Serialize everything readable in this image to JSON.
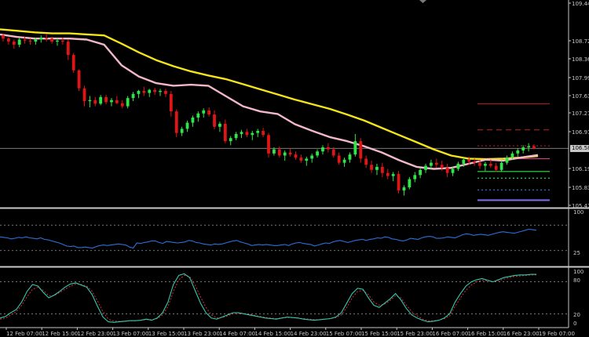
{
  "colors": {
    "background": "#000000",
    "axis": "#c8c8c8",
    "grid_dash": "#9a9a9a",
    "bull_candle": "#2ee64a",
    "bear_candle": "#e01515",
    "ma_slow": "#f5e41a",
    "ma_fast": "#f3b8c8",
    "rsi": "#2f6ed8",
    "stoch_main": "#35c8b0",
    "stoch_signal": "#d23030",
    "level_red": "#b01c2a",
    "level_magenta": "#d63a8a",
    "level_green": "#2ee64a",
    "level_blue": "#3a7ae0",
    "level_violet": "#7a68e8"
  },
  "current_price": "106.58",
  "chart_data": [
    {
      "type": "candlestick",
      "panel": "price",
      "ylim": [
        105.47,
        109.44
      ],
      "y_tick_labels": [
        "109.44",
        "108.72",
        "108.36",
        "107.99",
        "107.63",
        "107.27",
        "106.91",
        "106.58",
        "106.19",
        "105.83",
        "105.47"
      ],
      "x_tick_labels": [
        "12 Feb 07:00",
        "12 Feb 15:00",
        "12 Feb 23:00",
        "13 Feb 07:00",
        "13 Feb 15:00",
        "13 Feb 23:00",
        "14 Feb 07:00",
        "14 Feb 15:00",
        "14 Feb 23:00",
        "15 Feb 07:00",
        "15 Feb 15:00",
        "15 Feb 23:00",
        "16 Feb 07:00",
        "16 Feb 15:00",
        "16 Feb 23:00",
        "19 Feb 07:00"
      ],
      "moving_averages": [
        {
          "color_key": "ma_slow",
          "values": [
            108.9,
            108.87,
            108.84,
            108.82,
            108.82,
            108.8,
            108.78,
            108.62,
            108.45,
            108.3,
            108.18,
            108.08,
            108.0,
            107.93,
            107.83,
            107.73,
            107.63,
            107.53,
            107.44,
            107.35,
            107.24,
            107.12,
            106.98,
            106.84,
            106.7,
            106.56,
            106.44,
            106.38,
            106.37,
            106.38,
            106.4,
            106.43
          ]
        },
        {
          "color_key": "ma_fast",
          "values": [
            108.8,
            108.75,
            108.72,
            108.72,
            108.72,
            108.7,
            108.6,
            108.2,
            107.98,
            107.85,
            107.8,
            107.82,
            107.8,
            107.6,
            107.4,
            107.3,
            107.25,
            107.05,
            106.92,
            106.8,
            106.72,
            106.62,
            106.5,
            106.35,
            106.22,
            106.18,
            106.2,
            106.28,
            106.36,
            106.34,
            106.4,
            106.45
          ]
        }
      ],
      "levels": [
        {
          "price": 107.45,
          "style": "solid",
          "color_key": "level_red"
        },
        {
          "price": 106.94,
          "style": "dashed",
          "color_key": "level_red"
        },
        {
          "price": 106.63,
          "style": "dotted",
          "color_key": "level_red"
        },
        {
          "price": 106.38,
          "style": "solid",
          "color_key": "level_magenta"
        },
        {
          "price": 106.13,
          "style": "solid",
          "color_key": "level_green"
        },
        {
          "price": 106.0,
          "style": "dotted",
          "color_key": "level_green"
        },
        {
          "price": 105.77,
          "style": "dotted",
          "color_key": "level_blue"
        },
        {
          "price": 105.57,
          "style": "solid",
          "color_key": "level_violet"
        }
      ],
      "candles": [
        [
          108.78,
          108.82,
          108.66,
          108.72
        ],
        [
          108.72,
          108.74,
          108.6,
          108.66
        ],
        [
          108.66,
          108.7,
          108.52,
          108.6
        ],
        [
          108.6,
          108.74,
          108.55,
          108.7
        ],
        [
          108.7,
          108.76,
          108.62,
          108.68
        ],
        [
          108.68,
          108.72,
          108.6,
          108.66
        ],
        [
          108.66,
          108.74,
          108.6,
          108.7
        ],
        [
          108.7,
          108.78,
          108.64,
          108.74
        ],
        [
          108.74,
          108.8,
          108.66,
          108.72
        ],
        [
          108.72,
          108.76,
          108.62,
          108.66
        ],
        [
          108.66,
          108.72,
          108.58,
          108.68
        ],
        [
          108.68,
          108.74,
          108.6,
          108.66
        ],
        [
          108.66,
          108.7,
          108.3,
          108.4
        ],
        [
          108.4,
          108.44,
          108.05,
          108.1
        ],
        [
          108.1,
          108.12,
          107.7,
          107.75
        ],
        [
          107.75,
          107.8,
          107.4,
          107.5
        ],
        [
          107.5,
          107.6,
          107.38,
          107.52
        ],
        [
          107.52,
          107.58,
          107.4,
          107.45
        ],
        [
          107.45,
          107.62,
          107.42,
          107.58
        ],
        [
          107.58,
          107.62,
          107.44,
          107.48
        ],
        [
          107.48,
          107.56,
          107.4,
          107.52
        ],
        [
          107.52,
          107.6,
          107.44,
          107.46
        ],
        [
          107.46,
          107.52,
          107.36,
          107.4
        ],
        [
          107.4,
          107.6,
          107.36,
          107.56
        ],
        [
          107.56,
          107.68,
          107.5,
          107.64
        ],
        [
          107.64,
          107.72,
          107.56,
          107.7
        ],
        [
          107.7,
          107.78,
          107.6,
          107.66
        ],
        [
          107.66,
          107.74,
          107.58,
          107.72
        ],
        [
          107.72,
          107.76,
          107.62,
          107.68
        ],
        [
          107.68,
          107.74,
          107.6,
          107.7
        ],
        [
          107.7,
          107.74,
          107.58,
          107.64
        ],
        [
          107.64,
          107.7,
          107.2,
          107.3
        ],
        [
          107.3,
          107.34,
          106.8,
          106.88
        ],
        [
          106.88,
          107.0,
          106.82,
          106.96
        ],
        [
          106.96,
          107.12,
          106.9,
          107.08
        ],
        [
          107.08,
          107.22,
          107.0,
          107.18
        ],
        [
          107.18,
          107.3,
          107.1,
          107.26
        ],
        [
          107.26,
          107.36,
          107.18,
          107.32
        ],
        [
          107.32,
          107.38,
          107.2,
          107.24
        ],
        [
          107.24,
          107.32,
          106.95,
          107.0
        ],
        [
          107.0,
          107.1,
          106.9,
          107.06
        ],
        [
          107.06,
          107.14,
          106.68,
          106.72
        ],
        [
          106.72,
          106.82,
          106.64,
          106.78
        ],
        [
          106.78,
          106.9,
          106.74,
          106.86
        ],
        [
          106.86,
          106.94,
          106.78,
          106.9
        ],
        [
          106.9,
          106.96,
          106.8,
          106.84
        ],
        [
          106.84,
          106.92,
          106.74,
          106.88
        ],
        [
          106.88,
          106.96,
          106.8,
          106.92
        ],
        [
          106.92,
          106.98,
          106.8,
          106.84
        ],
        [
          106.84,
          106.88,
          106.4,
          106.48
        ],
        [
          106.48,
          106.6,
          106.44,
          106.56
        ],
        [
          106.56,
          106.62,
          106.4,
          106.44
        ],
        [
          106.44,
          106.54,
          106.34,
          106.5
        ],
        [
          106.5,
          106.58,
          106.42,
          106.46
        ],
        [
          106.46,
          106.52,
          106.36,
          106.4
        ],
        [
          106.4,
          106.46,
          106.3,
          106.34
        ],
        [
          106.34,
          106.42,
          106.24,
          106.38
        ],
        [
          106.38,
          106.48,
          106.3,
          106.44
        ],
        [
          106.44,
          106.56,
          106.4,
          106.52
        ],
        [
          106.52,
          106.64,
          106.46,
          106.6
        ],
        [
          106.6,
          106.68,
          106.5,
          106.56
        ],
        [
          106.56,
          106.6,
          106.4,
          106.44
        ],
        [
          106.44,
          106.5,
          106.26,
          106.3
        ],
        [
          106.3,
          106.4,
          106.22,
          106.36
        ],
        [
          106.36,
          106.5,
          106.3,
          106.46
        ],
        [
          106.46,
          106.86,
          106.42,
          106.72
        ],
        [
          106.72,
          106.78,
          106.3,
          106.38
        ],
        [
          106.38,
          106.44,
          106.2,
          106.26
        ],
        [
          106.26,
          106.34,
          106.1,
          106.16
        ],
        [
          106.16,
          106.28,
          106.06,
          106.22
        ],
        [
          106.22,
          106.3,
          106.02,
          106.1
        ],
        [
          106.1,
          106.18,
          105.98,
          106.04
        ],
        [
          106.04,
          106.12,
          105.94,
          106.08
        ],
        [
          106.08,
          106.14,
          105.7,
          105.76
        ],
        [
          105.76,
          105.86,
          105.66,
          105.82
        ],
        [
          105.82,
          106.02,
          105.78,
          105.98
        ],
        [
          105.98,
          106.12,
          105.92,
          106.06
        ],
        [
          106.06,
          106.2,
          106.0,
          106.16
        ],
        [
          106.16,
          106.28,
          106.1,
          106.24
        ],
        [
          106.24,
          106.36,
          106.18,
          106.3
        ],
        [
          106.3,
          106.38,
          106.2,
          106.26
        ],
        [
          106.26,
          106.34,
          106.14,
          106.2
        ],
        [
          106.2,
          106.28,
          106.02,
          106.1
        ],
        [
          106.1,
          106.22,
          106.04,
          106.18
        ],
        [
          106.18,
          106.32,
          106.14,
          106.28
        ],
        [
          106.28,
          106.4,
          106.22,
          106.36
        ],
        [
          106.36,
          106.42,
          106.26,
          106.32
        ],
        [
          106.32,
          106.38,
          106.24,
          106.3
        ],
        [
          106.3,
          106.36,
          106.18,
          106.24
        ],
        [
          106.24,
          106.32,
          106.14,
          106.28
        ],
        [
          106.28,
          106.36,
          106.2,
          106.24
        ],
        [
          106.24,
          106.3,
          106.12,
          106.16
        ],
        [
          106.16,
          106.34,
          106.12,
          106.3
        ],
        [
          106.3,
          106.44,
          106.26,
          106.4
        ],
        [
          106.4,
          106.52,
          106.36,
          106.48
        ],
        [
          106.48,
          106.58,
          106.42,
          106.54
        ],
        [
          106.54,
          106.64,
          106.48,
          106.6
        ],
        [
          106.6,
          106.68,
          106.52,
          106.62
        ],
        [
          106.62,
          106.66,
          106.56,
          106.58
        ]
      ]
    },
    {
      "type": "line",
      "panel": "rsi",
      "ylim": [
        0,
        100
      ],
      "y_tick_labels": [
        "100",
        "25"
      ],
      "levels": [
        75,
        25
      ],
      "values": [
        52,
        51,
        50,
        48,
        49,
        51,
        50,
        52,
        50,
        49,
        48,
        50,
        47,
        46,
        44,
        42,
        40,
        37,
        34,
        33,
        34,
        31,
        31,
        32,
        31,
        30,
        33,
        35,
        36,
        35,
        36,
        37,
        38,
        37,
        36,
        32,
        30,
        40,
        39,
        41,
        42,
        44,
        44,
        41,
        39,
        43,
        42,
        41,
        40,
        41,
        42,
        45,
        44,
        41,
        40,
        38,
        37,
        36,
        38,
        37,
        38,
        40,
        42,
        44,
        45,
        42,
        40,
        38,
        35,
        36,
        37,
        36,
        37,
        36,
        35,
        35,
        36,
        37,
        35,
        38,
        40,
        41,
        39,
        38,
        37,
        34,
        36,
        38,
        40,
        39,
        42,
        44,
        45,
        43,
        41,
        43,
        45,
        46,
        47,
        45,
        47,
        48,
        50,
        49,
        52,
        51,
        48,
        47,
        45,
        44,
        46,
        49,
        48,
        47,
        50,
        52,
        53,
        52,
        49,
        49,
        50,
        52,
        51,
        50,
        53,
        56,
        58,
        57,
        55,
        56,
        57,
        56,
        55,
        57,
        59,
        61,
        62,
        61,
        60,
        59,
        61,
        63,
        65,
        67,
        66,
        65
      ]
    },
    {
      "type": "line",
      "panel": "stochastic",
      "ylim": [
        0,
        100
      ],
      "y_tick_labels": [
        "100",
        "80",
        "20",
        "0"
      ],
      "levels": [
        80,
        20
      ],
      "series_main": [
        12,
        15,
        22,
        28,
        42,
        62,
        75,
        72,
        60,
        50,
        55,
        62,
        70,
        76,
        78,
        74,
        70,
        56,
        34,
        14,
        5,
        4,
        5,
        6,
        7,
        7,
        8,
        10,
        8,
        12,
        22,
        42,
        75,
        92,
        95,
        88,
        64,
        40,
        22,
        12,
        10,
        14,
        18,
        22,
        22,
        20,
        18,
        16,
        14,
        12,
        11,
        10,
        12,
        14,
        13,
        12,
        10,
        9,
        8,
        9,
        10,
        11,
        14,
        22,
        40,
        58,
        68,
        66,
        50,
        36,
        32,
        40,
        48,
        58,
        46,
        30,
        18,
        12,
        8,
        5,
        6,
        8,
        12,
        20,
        42,
        58,
        72,
        80,
        84,
        86,
        83,
        80,
        84,
        88,
        90,
        92,
        93,
        93,
        94,
        94
      ],
      "series_signal": [
        10,
        12,
        18,
        24,
        36,
        52,
        66,
        70,
        64,
        54,
        54,
        60,
        66,
        72,
        76,
        75,
        72,
        62,
        44,
        24,
        10,
        6,
        6,
        6,
        7,
        7,
        8,
        9,
        9,
        11,
        18,
        34,
        62,
        84,
        92,
        90,
        74,
        52,
        32,
        18,
        12,
        13,
        16,
        20,
        21,
        21,
        19,
        17,
        15,
        13,
        12,
        11,
        12,
        13,
        13,
        12,
        11,
        10,
        9,
        9,
        10,
        11,
        13,
        18,
        32,
        50,
        62,
        64,
        56,
        42,
        36,
        38,
        45,
        54,
        50,
        36,
        24,
        16,
        10,
        7,
        7,
        8,
        11,
        16,
        34,
        50,
        64,
        74,
        80,
        83,
        82,
        80,
        82,
        85,
        88,
        90,
        91,
        92,
        93,
        93
      ]
    }
  ]
}
